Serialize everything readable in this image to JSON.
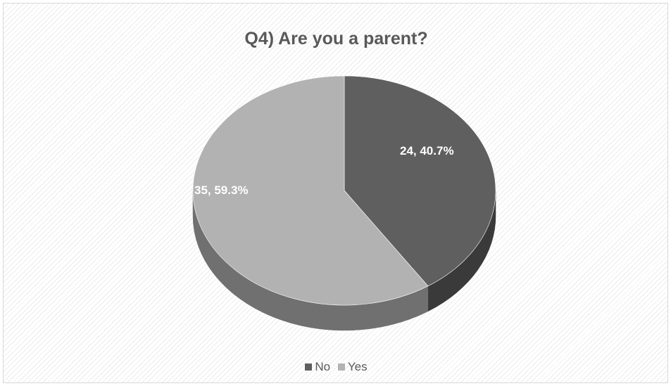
{
  "chart_data": {
    "type": "pie",
    "title": "Q4) Are you a parent?",
    "categories": [
      "No",
      "Yes"
    ],
    "values": [
      24,
      35
    ],
    "percentages": [
      "40.7%",
      "59.3%"
    ],
    "data_labels": [
      "24, 40.7%",
      "35, 59.3%"
    ],
    "colors": [
      "#5f5f5f",
      "#b2b2b2"
    ],
    "side_colors": [
      "#3a3a3a",
      "#707070"
    ],
    "legend_position": "bottom",
    "style": "3d"
  }
}
